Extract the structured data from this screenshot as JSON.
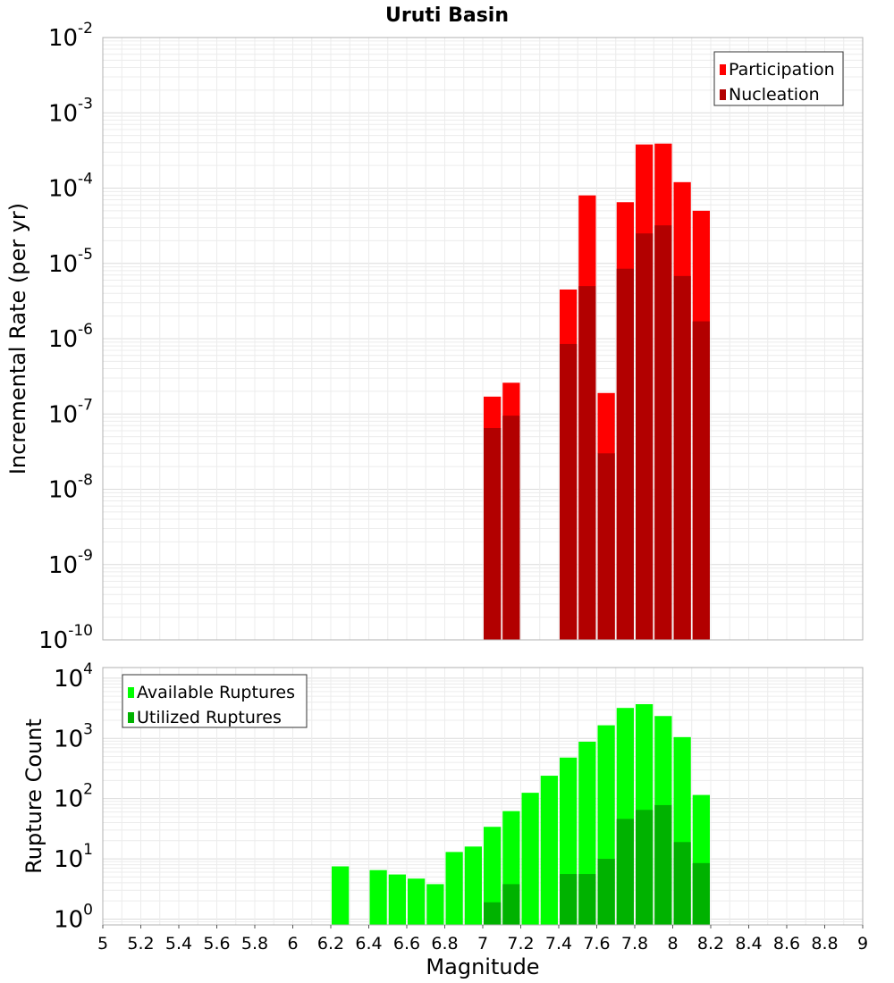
{
  "chart_data": [
    {
      "type": "bar",
      "title": "Uruti Basin",
      "xlabel": "",
      "ylabel": "Incremental Rate (per yr)",
      "yscale": "log",
      "ylim": [
        1e-10,
        0.01
      ],
      "xlim": [
        5,
        9
      ],
      "grid": true,
      "legend_position": "top-right",
      "bar_width": 0.1,
      "y_ticks": [
        {
          "base": "10",
          "exp": "-2"
        },
        {
          "base": "10",
          "exp": "-3"
        },
        {
          "base": "10",
          "exp": "-4"
        },
        {
          "base": "10",
          "exp": "-5"
        },
        {
          "base": "10",
          "exp": "-6"
        },
        {
          "base": "10",
          "exp": "-7"
        },
        {
          "base": "10",
          "exp": "-8"
        },
        {
          "base": "10",
          "exp": "-9"
        },
        {
          "base": "10",
          "exp": "-10"
        }
      ],
      "series": [
        {
          "name": "Participation",
          "color": "#ff0000",
          "points": [
            {
              "x": 7.05,
              "y": 1.7e-07
            },
            {
              "x": 7.15,
              "y": 2.6e-07
            },
            {
              "x": 7.45,
              "y": 4.5e-06
            },
            {
              "x": 7.55,
              "y": 8e-05
            },
            {
              "x": 7.65,
              "y": 1.9e-07
            },
            {
              "x": 7.75,
              "y": 6.5e-05
            },
            {
              "x": 7.85,
              "y": 0.00038
            },
            {
              "x": 7.95,
              "y": 0.00039
            },
            {
              "x": 8.05,
              "y": 0.00012
            },
            {
              "x": 8.15,
              "y": 5e-05
            }
          ]
        },
        {
          "name": "Nucleation",
          "color": "#b20000",
          "points": [
            {
              "x": 7.05,
              "y": 6.5e-08
            },
            {
              "x": 7.15,
              "y": 9.5e-08
            },
            {
              "x": 7.45,
              "y": 8.5e-07
            },
            {
              "x": 7.55,
              "y": 5e-06
            },
            {
              "x": 7.65,
              "y": 3e-08
            },
            {
              "x": 7.75,
              "y": 8.5e-06
            },
            {
              "x": 7.85,
              "y": 2.5e-05
            },
            {
              "x": 7.95,
              "y": 3.2e-05
            },
            {
              "x": 8.05,
              "y": 6.8e-06
            },
            {
              "x": 8.15,
              "y": 1.7e-06
            }
          ]
        }
      ]
    },
    {
      "type": "bar",
      "title": "",
      "xlabel": "Magnitude",
      "ylabel": "Rupture Count",
      "yscale": "log",
      "ylim": [
        0.8,
        15000
      ],
      "xlim": [
        5,
        9
      ],
      "grid": true,
      "legend_position": "top-left",
      "bar_width": 0.1,
      "x_ticks": [
        "5",
        "5.2",
        "5.4",
        "5.6",
        "5.8",
        "6",
        "6.2",
        "6.4",
        "6.6",
        "6.8",
        "7",
        "7.2",
        "7.4",
        "7.6",
        "7.8",
        "8",
        "8.2",
        "8.4",
        "8.6",
        "8.8",
        "9"
      ],
      "y_ticks": [
        {
          "base": "10",
          "exp": "4",
          "value": 10000
        },
        {
          "base": "10",
          "exp": "3",
          "value": 1000
        },
        {
          "base": "10",
          "exp": "2",
          "value": 100
        },
        {
          "base": "10",
          "exp": "1",
          "value": 10
        },
        {
          "base": "10",
          "exp": "0",
          "value": 1
        }
      ],
      "series": [
        {
          "name": "Available Ruptures",
          "color": "#00ff00",
          "points": [
            {
              "x": 6.25,
              "y": 7.5
            },
            {
              "x": 6.45,
              "y": 6.5
            },
            {
              "x": 6.55,
              "y": 5.5
            },
            {
              "x": 6.65,
              "y": 4.7
            },
            {
              "x": 6.75,
              "y": 3.8
            },
            {
              "x": 6.85,
              "y": 13
            },
            {
              "x": 6.95,
              "y": 16
            },
            {
              "x": 7.05,
              "y": 34
            },
            {
              "x": 7.15,
              "y": 62
            },
            {
              "x": 7.25,
              "y": 125
            },
            {
              "x": 7.35,
              "y": 240
            },
            {
              "x": 7.45,
              "y": 480
            },
            {
              "x": 7.55,
              "y": 880
            },
            {
              "x": 7.65,
              "y": 1650
            },
            {
              "x": 7.75,
              "y": 3200
            },
            {
              "x": 7.85,
              "y": 3700
            },
            {
              "x": 7.95,
              "y": 2350
            },
            {
              "x": 8.05,
              "y": 1050
            },
            {
              "x": 8.15,
              "y": 115
            }
          ]
        },
        {
          "name": "Utilized Ruptures",
          "color": "#00b200",
          "points": [
            {
              "x": 7.05,
              "y": 1.9
            },
            {
              "x": 7.15,
              "y": 3.8
            },
            {
              "x": 7.45,
              "y": 5.6
            },
            {
              "x": 7.55,
              "y": 5.6
            },
            {
              "x": 7.65,
              "y": 10
            },
            {
              "x": 7.75,
              "y": 46
            },
            {
              "x": 7.85,
              "y": 65
            },
            {
              "x": 7.95,
              "y": 78
            },
            {
              "x": 8.05,
              "y": 19
            },
            {
              "x": 8.15,
              "y": 8.5
            }
          ]
        }
      ]
    }
  ]
}
